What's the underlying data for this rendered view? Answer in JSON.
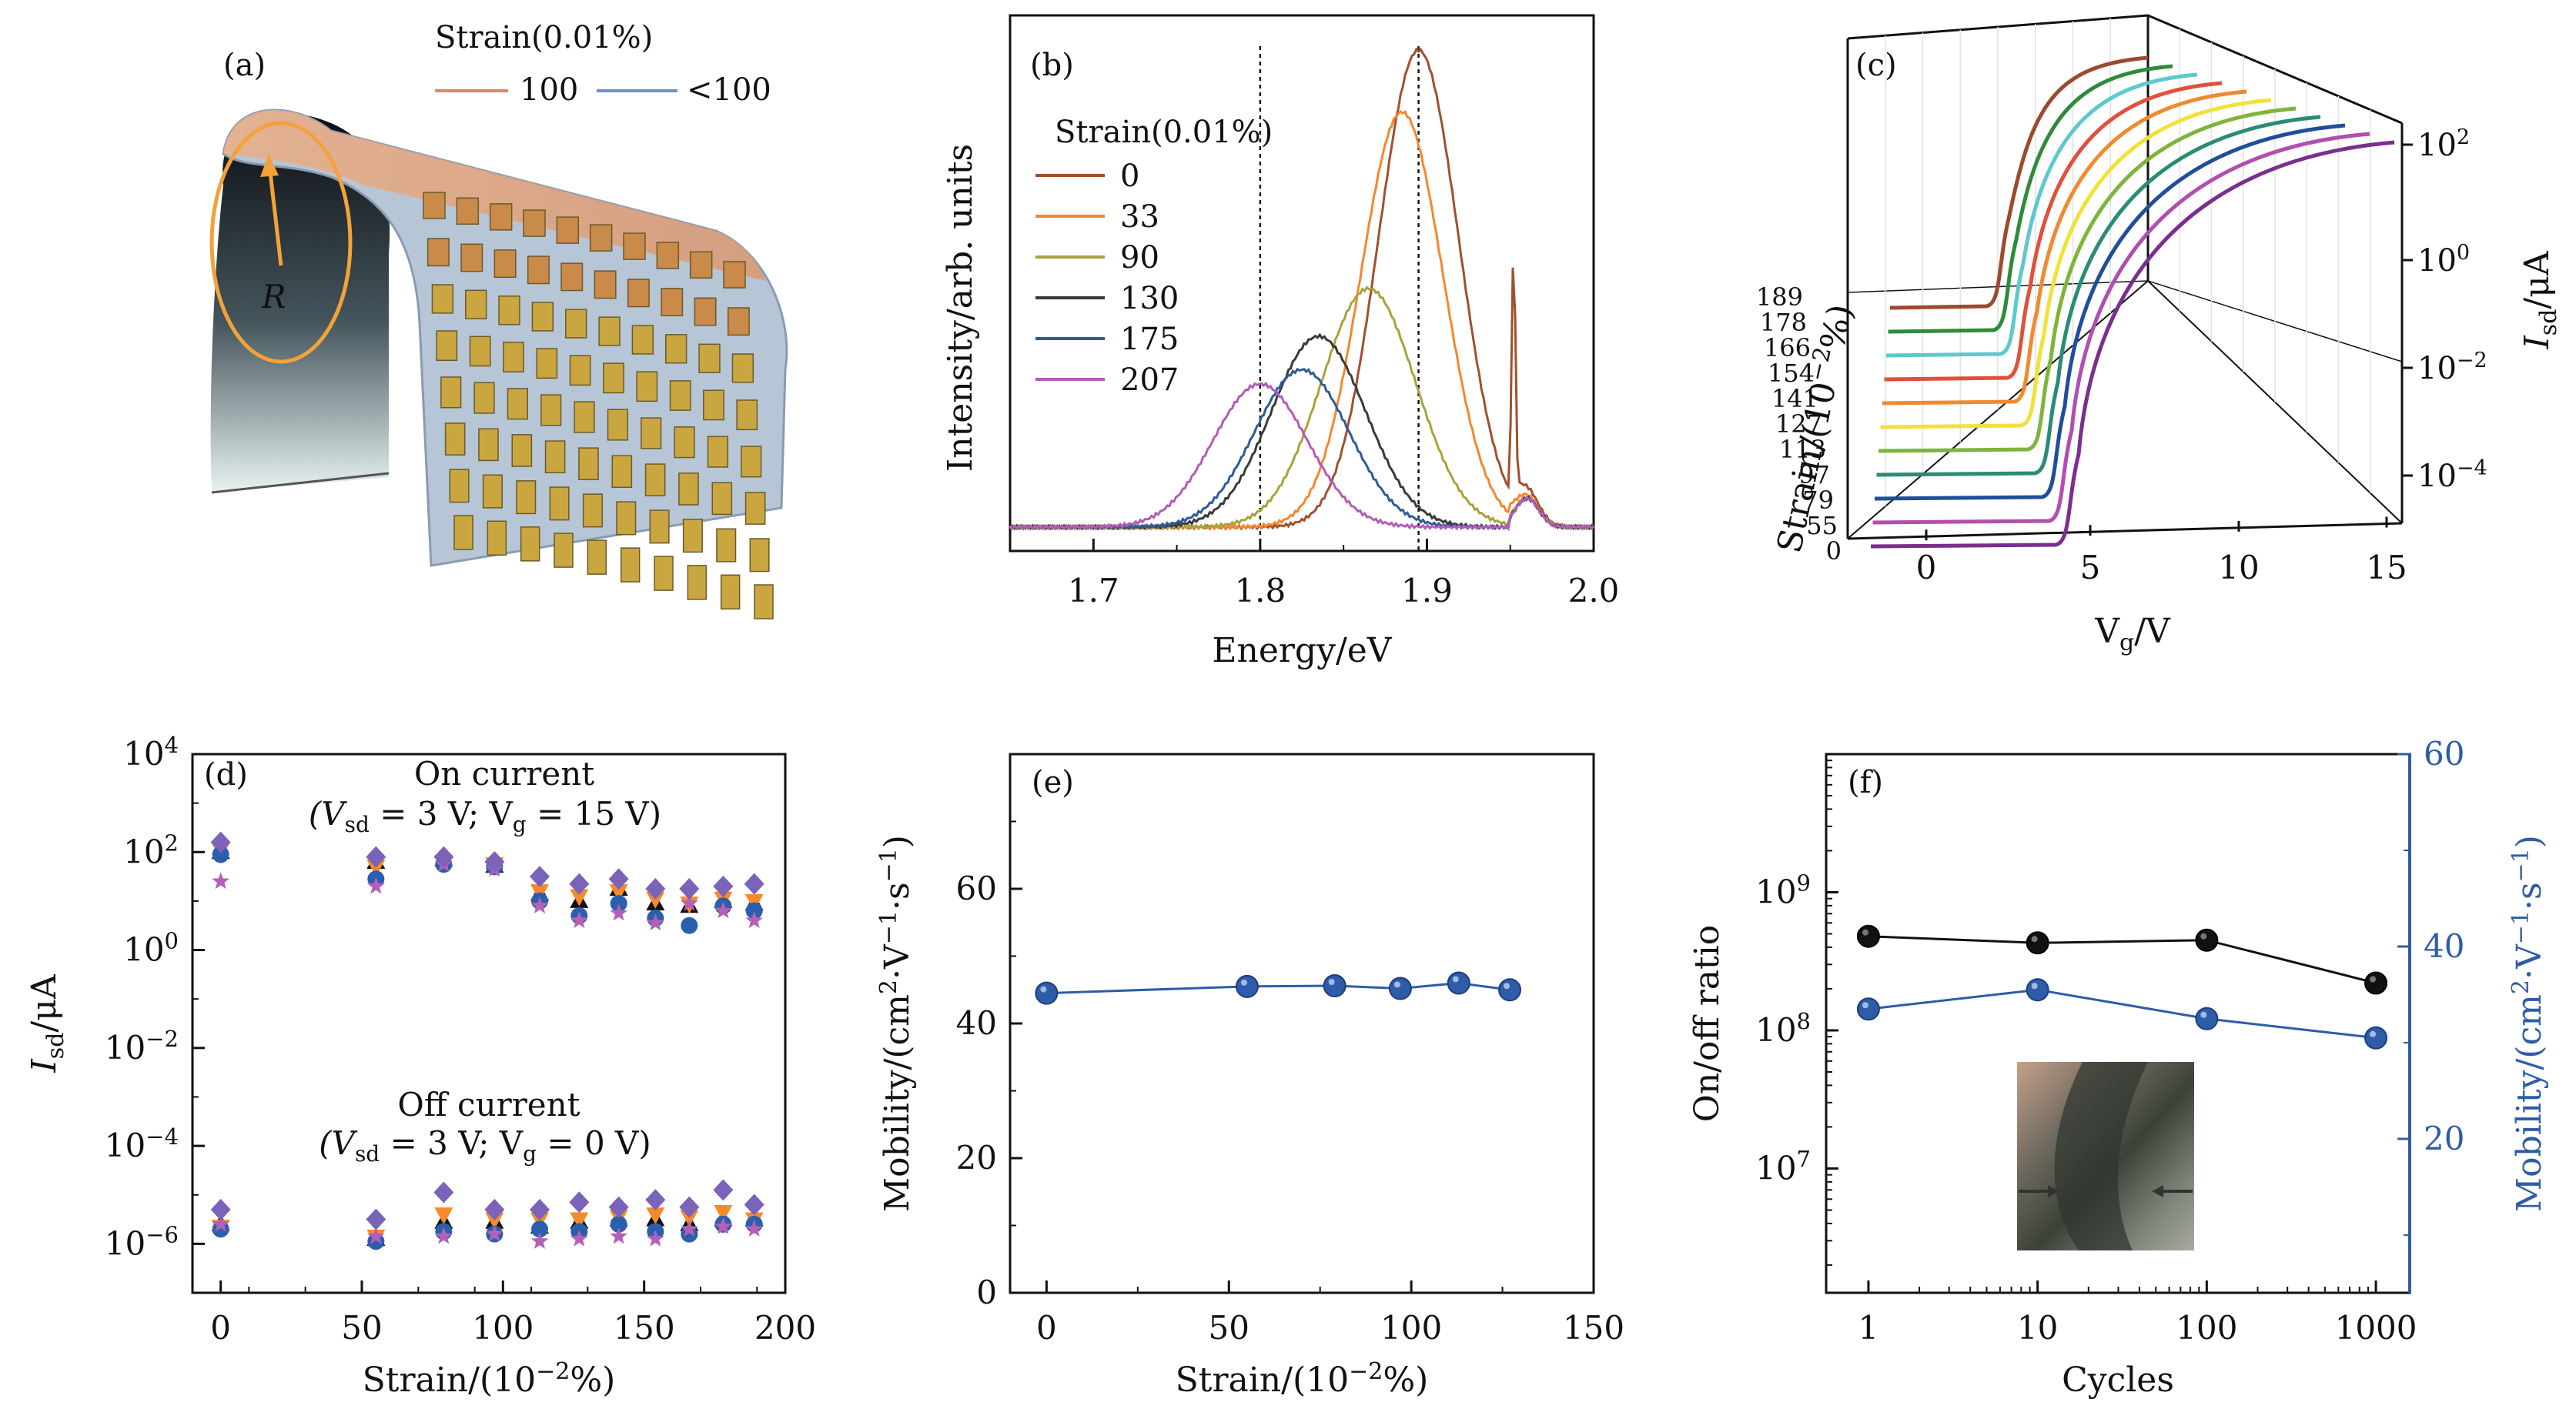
{
  "panels": {
    "a": {
      "label": "(a)",
      "legend_title": "Strain(0.01%)",
      "legend": [
        {
          "name": "100",
          "color": "#e8806a"
        },
        {
          "name": "<100",
          "color": "#6f8fd8"
        }
      ],
      "radius_label": "R"
    },
    "b": {
      "label": "(b)"
    },
    "c": {
      "label": "(c)"
    },
    "d": {
      "label": "(d)",
      "on_label_1": "On current",
      "on_label_2": "(V",
      "on_label_3": "sd",
      "on_label_4": " = 3 V; V",
      "on_label_5": "g",
      "on_label_6": " = 15 V)",
      "off_label_1": "Off current",
      "off_label_6": " = 0 V)"
    },
    "e": {
      "label": "(e)"
    },
    "f": {
      "label": "(f)"
    }
  },
  "colors": {
    "black": "#111111",
    "orange": "#f58a2a",
    "purple": "#7a63b8",
    "blue": "#2b5fae",
    "magenta": "#b460b8",
    "line_blue": "#2e5ca8"
  },
  "chart_data": [
    {
      "panel": "b",
      "type": "line",
      "title": "",
      "xlabel": "Energy/eV",
      "ylabel": "Intensity/arb. units",
      "xlim": [
        1.65,
        2.0
      ],
      "ylim": [
        0,
        1.02
      ],
      "xticks": [
        "1.7",
        "1.8",
        "1.9",
        "2.0"
      ],
      "xtick_values": [
        1.7,
        1.8,
        1.9,
        2.0
      ],
      "legend_title": "Strain(0.01%)",
      "reference_lines_x": [
        1.8,
        1.895
      ],
      "series": [
        {
          "name": "0",
          "color": "#a0502e",
          "peak": 1.895,
          "height": 1.0,
          "width": 0.034
        },
        {
          "name": "33",
          "color": "#f5872e",
          "peak": 1.885,
          "height": 0.87,
          "width": 0.035
        },
        {
          "name": "90",
          "color": "#a9a23a",
          "peak": 1.865,
          "height": 0.5,
          "width": 0.04
        },
        {
          "name": "130",
          "color": "#3a3a3a",
          "peak": 1.835,
          "height": 0.4,
          "width": 0.04
        },
        {
          "name": "175",
          "color": "#2c5c9a",
          "peak": 1.825,
          "height": 0.33,
          "width": 0.04
        },
        {
          "name": "207",
          "color": "#b55bb8",
          "peak": 1.8,
          "height": 0.3,
          "width": 0.04
        }
      ]
    },
    {
      "panel": "c",
      "type": "line",
      "title": "",
      "xlabel": "V",
      "xlabel_sub": "g",
      "xlabel_tail": "/V",
      "ylabel": "Strain/(10",
      "ylabel_sup": "−2",
      "ylabel_tail": "%)",
      "zlabel": "I",
      "zlabel_sub": "sd",
      "zlabel_tail": "/μA",
      "xticks": [
        "0",
        "5",
        "10",
        "15"
      ],
      "yticks": [
        "0",
        "55",
        "79",
        "97",
        "113",
        "127",
        "141",
        "154",
        "166",
        "178",
        "189"
      ],
      "zticks": [
        "10",
        "10",
        "10",
        "10"
      ],
      "zticks_exp": [
        "2",
        "0",
        "−2",
        "−4"
      ],
      "series": [
        {
          "name": "0",
          "color": "#7a2f8e"
        },
        {
          "name": "55",
          "color": "#b04fb0"
        },
        {
          "name": "79",
          "color": "#1f4e9a"
        },
        {
          "name": "97",
          "color": "#2a8c74"
        },
        {
          "name": "113",
          "color": "#7fb43a"
        },
        {
          "name": "127",
          "color": "#f2e13a"
        },
        {
          "name": "141",
          "color": "#f08a30"
        },
        {
          "name": "154",
          "color": "#e0503a"
        },
        {
          "name": "166",
          "color": "#5ec8cf"
        },
        {
          "name": "178",
          "color": "#2f8a3a"
        },
        {
          "name": "189",
          "color": "#9c4a2e"
        }
      ]
    },
    {
      "panel": "d",
      "type": "scatter",
      "title": "",
      "xlabel": "Strain/(10",
      "xlabel_sup": "−2",
      "xlabel_tail": "%)",
      "ylabel": "I",
      "ylabel_sub": "sd",
      "ylabel_tail": "/μA",
      "xlim": [
        -10,
        200
      ],
      "ylim_log10": [
        -7,
        4
      ],
      "xticks": [
        "0",
        "50",
        "100",
        "150",
        "200"
      ],
      "xtick_values": [
        0,
        50,
        100,
        150,
        200
      ],
      "yticks": [
        "10",
        "10",
        "10",
        "10",
        "10",
        "10"
      ],
      "yticks_exp": [
        "4",
        "2",
        "0",
        "−2",
        "−4",
        "−6"
      ],
      "ytick_values_log10": [
        4,
        2,
        0,
        -2,
        -4,
        -6
      ],
      "x": [
        0,
        55,
        79,
        97,
        113,
        127,
        141,
        154,
        166,
        178,
        189
      ],
      "series": [
        {
          "name": "on-black",
          "marker": "triangle",
          "color": "#111111",
          "values_log10": [
            2.0,
            1.8,
            1.85,
            1.72,
            1.15,
            1.0,
            1.25,
            0.95,
            0.9,
            1.0,
            0.95
          ]
        },
        {
          "name": "on-orange",
          "marker": "triangle-down",
          "color": "#f58a2a",
          "values_log10": [
            2.05,
            1.7,
            1.8,
            1.75,
            1.2,
            1.1,
            1.2,
            1.05,
            0.95,
            1.05,
            1.0
          ]
        },
        {
          "name": "on-blue",
          "marker": "circle",
          "color": "#2b5fae",
          "values_log10": [
            1.95,
            1.45,
            1.75,
            1.7,
            1.0,
            0.7,
            0.95,
            0.65,
            0.5,
            0.9,
            0.8
          ]
        },
        {
          "name": "on-magenta",
          "marker": "star",
          "color": "#b460b8",
          "values_log10": [
            1.4,
            1.3,
            1.75,
            1.65,
            0.9,
            0.6,
            0.75,
            0.55,
            0.95,
            0.8,
            0.6
          ]
        },
        {
          "name": "on-purple",
          "marker": "diamond",
          "color": "#7a63b8",
          "values_log10": [
            2.2,
            1.9,
            1.9,
            1.8,
            1.5,
            1.35,
            1.45,
            1.25,
            1.25,
            1.3,
            1.35
          ]
        },
        {
          "name": "off-black",
          "marker": "triangle",
          "color": "#111111",
          "values_log10": [
            -5.6,
            -5.9,
            -5.55,
            -5.55,
            -5.65,
            -5.55,
            -5.5,
            -5.5,
            -5.6,
            -5.5,
            -5.5
          ]
        },
        {
          "name": "off-orange",
          "marker": "triangle-down",
          "color": "#f58a2a",
          "values_log10": [
            -5.65,
            -5.85,
            -5.4,
            -5.5,
            -5.5,
            -5.5,
            -5.45,
            -5.4,
            -5.45,
            -5.35,
            -5.5
          ]
        },
        {
          "name": "off-blue",
          "marker": "circle",
          "color": "#2b5fae",
          "values_log10": [
            -5.7,
            -5.95,
            -5.75,
            -5.8,
            -5.7,
            -5.75,
            -5.6,
            -5.75,
            -5.8,
            -5.6,
            -5.6
          ]
        },
        {
          "name": "off-magenta",
          "marker": "star",
          "color": "#b460b8",
          "values_log10": [
            -5.6,
            -5.85,
            -5.85,
            -5.8,
            -5.95,
            -5.9,
            -5.85,
            -5.9,
            -5.7,
            -5.65,
            -5.7
          ]
        },
        {
          "name": "off-purple",
          "marker": "diamond",
          "color": "#7a63b8",
          "values_log10": [
            -5.3,
            -5.5,
            -4.95,
            -5.3,
            -5.3,
            -5.15,
            -5.25,
            -5.1,
            -5.25,
            -4.9,
            -5.2
          ]
        }
      ]
    },
    {
      "panel": "e",
      "type": "line",
      "title": "",
      "xlabel": "Strain/(10",
      "xlabel_sup": "−2",
      "xlabel_tail": "%)",
      "ylabel": "Mobility/(cm",
      "ylabel_sup1": "2",
      "ylabel_mid": "·V",
      "ylabel_sup2": "−1",
      "ylabel_mid2": "·s",
      "ylabel_sup3": "−1",
      "ylabel_tail": ")",
      "xlim": [
        -10,
        150
      ],
      "ylim": [
        0,
        80
      ],
      "xticks": [
        "0",
        "50",
        "100",
        "150"
      ],
      "xtick_values": [
        0,
        50,
        100,
        150
      ],
      "yticks": [
        "0",
        "20",
        "40",
        "60"
      ],
      "ytick_values": [
        0,
        20,
        40,
        60
      ],
      "series": [
        {
          "name": "",
          "color": "#2e5ca8",
          "x": [
            0,
            55,
            79,
            97,
            113,
            127
          ],
          "values": [
            44.5,
            45.5,
            45.6,
            45.2,
            46.0,
            45.0
          ]
        }
      ]
    },
    {
      "panel": "f",
      "type": "line",
      "title": "",
      "xlabel": "Cycles",
      "ylabel": "On/off ratio",
      "ylabel_right": "Mobility/(cm",
      "ylabel_right_sup1": "2",
      "ylabel_right_mid": "·V",
      "ylabel_right_sup2": "−1",
      "ylabel_right_mid2": "·s",
      "ylabel_right_sup3": "−1",
      "ylabel_right_tail": ")",
      "x_log": true,
      "xlim_log10": [
        -0.25,
        3.2
      ],
      "ylim_left_log10": [
        6.1,
        10.0
      ],
      "ylim_right": [
        4,
        60
      ],
      "xticks": [
        "1",
        "10",
        "100",
        "1000"
      ],
      "xtick_values": [
        1,
        10,
        100,
        1000
      ],
      "yticks_left": [
        "10",
        "10",
        "10"
      ],
      "yticks_left_exp": [
        "9",
        "8",
        "7"
      ],
      "ytick_left_log10": [
        9,
        8,
        7
      ],
      "yticks_right": [
        "20",
        "40",
        "60"
      ],
      "ytick_right_values": [
        20,
        40,
        60
      ],
      "x": [
        1,
        10,
        100,
        1000
      ],
      "series": [
        {
          "name": "",
          "axis": "left",
          "color": "#111111",
          "values": [
            480000000,
            430000000,
            450000000,
            220000000
          ]
        },
        {
          "name": "",
          "axis": "right",
          "color": "#2e5ca8",
          "values": [
            33.5,
            35.5,
            32.5,
            30.5
          ]
        }
      ]
    }
  ]
}
